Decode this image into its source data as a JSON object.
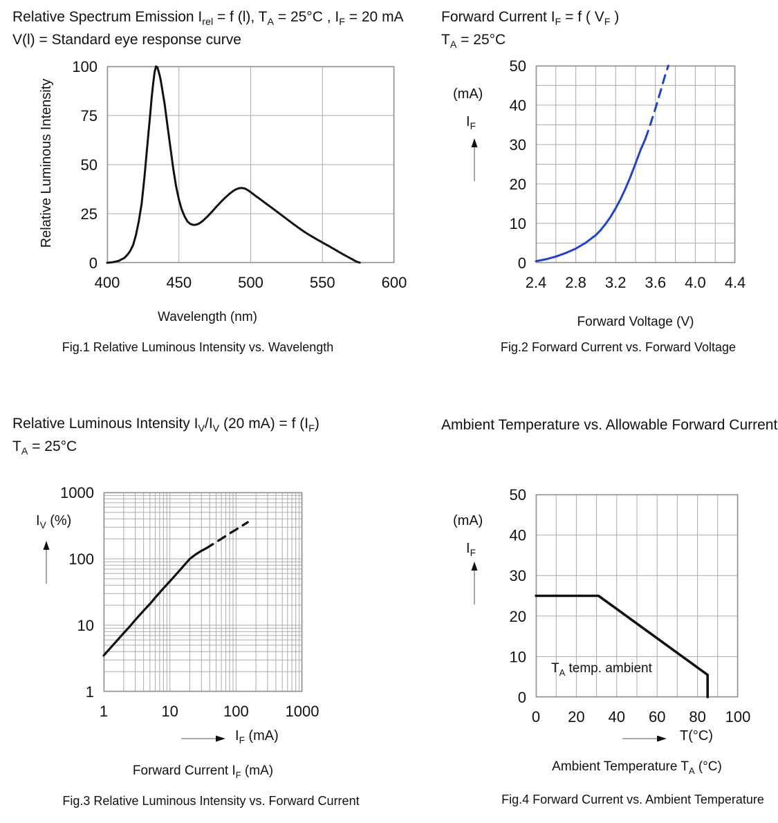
{
  "colors": {
    "curve": "#111111",
    "blue_curve": "#2143cb",
    "grid": "#ababab",
    "border": "#8f8f8f",
    "text": "#111111"
  },
  "figures": {
    "fig1": {
      "title_line1": [
        {
          "t": "Relative Spectrum Emission I"
        },
        {
          "t": "rel",
          "sub": true
        },
        {
          "t": " = f (l), T"
        },
        {
          "t": "A",
          "sub": true
        },
        {
          "t": " = 25°C , I"
        },
        {
          "t": "F",
          "sub": true
        },
        {
          "t": " = 20 mA"
        }
      ],
      "title_line2": [
        {
          "t": "V(l) = Standard eye response curve"
        }
      ],
      "ylabel": "Relative Luminous Intensity",
      "xlabel": "Wavelength (nm)",
      "caption": "Fig.1 Relative Luminous Intensity vs. Wavelength"
    },
    "fig2": {
      "title_line1": [
        {
          "t": "Forward Current I"
        },
        {
          "t": "F",
          "sub": true
        },
        {
          "t": " = f ( V"
        },
        {
          "t": "F",
          "sub": true
        },
        {
          "t": " )"
        }
      ],
      "title_line2": [
        {
          "t": "T"
        },
        {
          "t": "A",
          "sub": true
        },
        {
          "t": " = 25°C"
        }
      ],
      "unit_label": "(mA)",
      "quantity_label": [
        {
          "t": "I"
        },
        {
          "t": "F",
          "sub": true
        }
      ],
      "xlabel": "Forward Voltage (V)",
      "caption": "Fig.2 Forward Current vs. Forward Voltage"
    },
    "fig3": {
      "title_line1": [
        {
          "t": "Relative Luminous Intensity I"
        },
        {
          "t": "V",
          "sub": true
        },
        {
          "t": "/I"
        },
        {
          "t": "V",
          "sub": true
        },
        {
          "t": " (20 mA) = f (I"
        },
        {
          "t": "F",
          "sub": true
        },
        {
          "t": ")"
        }
      ],
      "title_line2": [
        {
          "t": "T"
        },
        {
          "t": "A",
          "sub": true
        },
        {
          "t": " = 25°C"
        }
      ],
      "quantity_label": [
        {
          "t": "I"
        },
        {
          "t": "V",
          "sub": true
        },
        {
          "t": " (%)"
        }
      ],
      "x_arrow_label": [
        {
          "t": "I"
        },
        {
          "t": "F",
          "sub": true
        },
        {
          "t": " (mA)"
        }
      ],
      "xlabel_rich": [
        {
          "t": "Forward Current I"
        },
        {
          "t": "F",
          "sub": true
        },
        {
          "t": " (mA)"
        }
      ],
      "caption": "Fig.3 Relative Luminous Intensity vs. Forward Current"
    },
    "fig4": {
      "title_line1": [
        {
          "t": "Ambient Temperature vs. Allowable Forward Current"
        }
      ],
      "unit_label": "(mA)",
      "quantity_label": [
        {
          "t": "I"
        },
        {
          "t": "F",
          "sub": true
        }
      ],
      "x_arrow_label": [
        {
          "t": "T(°C)"
        }
      ],
      "xlabel_rich": [
        {
          "t": "Ambient Temperature T"
        },
        {
          "t": "A",
          "sub": true
        },
        {
          "t": " (°C)"
        }
      ],
      "inner_label": [
        {
          "t": "T"
        },
        {
          "t": "A",
          "sub": true
        },
        {
          "t": " temp. ambient"
        }
      ],
      "caption": "Fig.4 Forward Current vs. Ambient Temperature"
    }
  },
  "chart_data": [
    {
      "id": "fig1",
      "type": "line",
      "title": "Relative Spectrum Emission Irel = f (l), TA = 25°C, IF = 20 mA",
      "xlabel": "Wavelength (nm)",
      "ylabel": "Relative Luminous Intensity",
      "legend": "none",
      "x_axis": {
        "scale": "linear",
        "min": 400,
        "max": 600,
        "grid_step": 50,
        "ticks": [
          400,
          450,
          500,
          550,
          600
        ],
        "tick_labels": [
          "400",
          "450",
          "500",
          "550",
          "600"
        ]
      },
      "y_axis": {
        "scale": "linear",
        "min": 0,
        "max": 100,
        "grid_step": 25,
        "ticks": [
          0,
          25,
          50,
          75,
          100
        ],
        "tick_labels": [
          "0",
          "25",
          "50",
          "75",
          "100"
        ]
      },
      "series": [
        {
          "name": "relative-spectral-emission",
          "color": "#111111",
          "width": 3,
          "segments": [
            {
              "dash": false,
              "points": [
                [
                  400,
                  0
                ],
                [
                  404,
                  0.3
                ],
                [
                  408,
                  1
                ],
                [
                  412,
                  2.5
                ],
                [
                  414,
                  4
                ],
                [
                  416,
                  6
                ],
                [
                  418,
                  9
                ],
                [
                  420,
                  14
                ],
                [
                  422,
                  21
                ],
                [
                  424,
                  30
                ],
                [
                  426,
                  44
                ],
                [
                  428,
                  60
                ],
                [
                  430,
                  76
                ],
                [
                  431,
                  84
                ],
                [
                  432,
                  91
                ],
                [
                  433,
                  97
                ],
                [
                  434,
                  100
                ],
                [
                  435,
                  99.5
                ],
                [
                  436,
                  97
                ],
                [
                  437,
                  94
                ],
                [
                  438,
                  90
                ],
                [
                  440,
                  81
                ],
                [
                  442,
                  70
                ],
                [
                  444,
                  59
                ],
                [
                  446,
                  48
                ],
                [
                  448,
                  39
                ],
                [
                  450,
                  32
                ],
                [
                  452,
                  27
                ],
                [
                  454,
                  23.5
                ],
                [
                  456,
                  21
                ],
                [
                  458,
                  19.8
                ],
                [
                  460,
                  19.3
                ],
                [
                  462,
                  19.4
                ],
                [
                  464,
                  20
                ],
                [
                  466,
                  21
                ],
                [
                  468,
                  22.3
                ],
                [
                  470,
                  23.7
                ],
                [
                  473,
                  26
                ],
                [
                  476,
                  28.5
                ],
                [
                  479,
                  30.8
                ],
                [
                  482,
                  33
                ],
                [
                  485,
                  35
                ],
                [
                  488,
                  36.7
                ],
                [
                  490,
                  37.5
                ],
                [
                  492,
                  38
                ],
                [
                  494,
                  38.1
                ],
                [
                  496,
                  37.8
                ],
                [
                  498,
                  37
                ],
                [
                  500,
                  36
                ],
                [
                  503,
                  34.3
                ],
                [
                  506,
                  32.7
                ],
                [
                  510,
                  30.5
                ],
                [
                  514,
                  28.4
                ],
                [
                  518,
                  26.2
                ],
                [
                  522,
                  24
                ],
                [
                  526,
                  21.8
                ],
                [
                  530,
                  19.6
                ],
                [
                  534,
                  17.5
                ],
                [
                  538,
                  15.5
                ],
                [
                  542,
                  13.7
                ],
                [
                  546,
                  12
                ],
                [
                  550,
                  10.3
                ],
                [
                  554,
                  8.7
                ],
                [
                  558,
                  7
                ],
                [
                  562,
                  5.3
                ],
                [
                  566,
                  3.7
                ],
                [
                  569,
                  2.5
                ],
                [
                  572,
                  1.3
                ],
                [
                  574,
                  0.5
                ],
                [
                  576,
                  0.1
                ]
              ]
            }
          ]
        }
      ]
    },
    {
      "id": "fig2",
      "type": "line",
      "title": "Forward Current IF = f ( VF ), TA = 25°C",
      "xlabel": "Forward Voltage (V)",
      "ylabel": "IF (mA)",
      "legend": "none",
      "x_axis": {
        "scale": "linear",
        "min": 2.4,
        "max": 4.4,
        "grid_step": 0.2,
        "ticks": [
          2.4,
          2.8,
          3.2,
          3.6,
          4.0,
          4.4
        ],
        "tick_labels": [
          "2.4",
          "2.8",
          "3.2",
          "3.6",
          "4.0",
          "4.4"
        ]
      },
      "y_axis": {
        "scale": "linear",
        "min": 0,
        "max": 50,
        "grid_step": 5,
        "ticks": [
          0,
          10,
          20,
          30,
          40,
          50
        ],
        "tick_labels": [
          "0",
          "10",
          "20",
          "30",
          "40",
          "50"
        ]
      },
      "series": [
        {
          "name": "forward-current-vs-voltage",
          "color": "#2143cb",
          "width": 3,
          "segments": [
            {
              "dash": false,
              "points": [
                [
                  2.4,
                  0.4
                ],
                [
                  2.5,
                  0.9
                ],
                [
                  2.6,
                  1.6
                ],
                [
                  2.7,
                  2.5
                ],
                [
                  2.8,
                  3.6
                ],
                [
                  2.9,
                  5.1
                ],
                [
                  3.0,
                  7.0
                ],
                [
                  3.05,
                  8.3
                ],
                [
                  3.1,
                  9.9
                ],
                [
                  3.15,
                  11.7
                ],
                [
                  3.2,
                  13.8
                ],
                [
                  3.25,
                  16.2
                ],
                [
                  3.3,
                  18.9
                ],
                [
                  3.35,
                  21.9
                ],
                [
                  3.4,
                  25.2
                ],
                [
                  3.45,
                  28.6
                ],
                [
                  3.5,
                  31.5
                ]
              ]
            },
            {
              "dash": true,
              "points": [
                [
                  3.5,
                  31.5
                ],
                [
                  3.55,
                  35.2
                ],
                [
                  3.6,
                  39.2
                ],
                [
                  3.65,
                  43.4
                ],
                [
                  3.7,
                  47.8
                ],
                [
                  3.73,
                  50
                ]
              ]
            }
          ]
        }
      ]
    },
    {
      "id": "fig3",
      "type": "line",
      "title": "Relative Luminous Intensity IV/IV (20 mA) = f (IF), TA = 25°C",
      "xlabel": "Forward Current IF (mA)",
      "ylabel": "IV (%)",
      "legend": "none",
      "x_axis": {
        "scale": "log",
        "min": 1,
        "max": 1000,
        "ticks": [
          1,
          10,
          100,
          1000
        ],
        "tick_labels": [
          "1",
          "10",
          "100",
          "1000"
        ]
      },
      "y_axis": {
        "scale": "log",
        "min": 1,
        "max": 1000,
        "ticks": [
          1,
          10,
          100,
          1000
        ],
        "tick_labels": [
          "1",
          "10",
          "100",
          "1000"
        ]
      },
      "series": [
        {
          "name": "relative-luminous-intensity-vs-current",
          "color": "#111111",
          "width": 3.2,
          "segments": [
            {
              "dash": false,
              "points": [
                [
                  1,
                  3.5
                ],
                [
                  1.5,
                  5.5
                ],
                [
                  2,
                  7.6
                ],
                [
                  2.5,
                  9.7
                ],
                [
                  3,
                  12
                ],
                [
                  4,
                  16.5
                ],
                [
                  5,
                  21
                ],
                [
                  6,
                  26
                ],
                [
                  8,
                  36
                ],
                [
                  10,
                  46
                ],
                [
                  12,
                  56
                ],
                [
                  15,
                  72
                ],
                [
                  20,
                  100
                ],
                [
                  25,
                  118
                ],
                [
                  30,
                  132
                ],
                [
                  35,
                  143
                ]
              ]
            },
            {
              "dash": true,
              "points": [
                [
                  35,
                  143
                ],
                [
                  45,
                  167
                ],
                [
                  60,
                  200
                ],
                [
                  80,
                  241
                ],
                [
                  100,
                  276
                ],
                [
                  125,
                  317
                ],
                [
                  150,
                  356
                ]
              ]
            }
          ]
        }
      ]
    },
    {
      "id": "fig4",
      "type": "line",
      "title": "Ambient Temperature vs. Allowable Forward Current",
      "xlabel": "Ambient Temperature TA (°C)",
      "ylabel": "IF (mA)",
      "legend": "none",
      "annotation": "TA temp. ambient",
      "x_axis": {
        "scale": "linear",
        "min": 0,
        "max": 100,
        "grid_step": 10,
        "ticks": [
          0,
          20,
          40,
          60,
          80,
          100
        ],
        "tick_labels": [
          "0",
          "20",
          "40",
          "60",
          "80",
          "100"
        ]
      },
      "y_axis": {
        "scale": "linear",
        "min": 0,
        "max": 50,
        "grid_step": 10,
        "ticks": [
          0,
          10,
          20,
          30,
          40,
          50
        ],
        "tick_labels": [
          "0",
          "10",
          "20",
          "30",
          "40",
          "50"
        ]
      },
      "series": [
        {
          "name": "allowable-forward-current-derating",
          "color": "#111111",
          "width": 3.6,
          "segments": [
            {
              "dash": false,
              "points": [
                [
                  0,
                  25
                ],
                [
                  31,
                  25
                ],
                [
                  85,
                  5.5
                ],
                [
                  85,
                  0
                ]
              ]
            }
          ]
        }
      ]
    }
  ]
}
